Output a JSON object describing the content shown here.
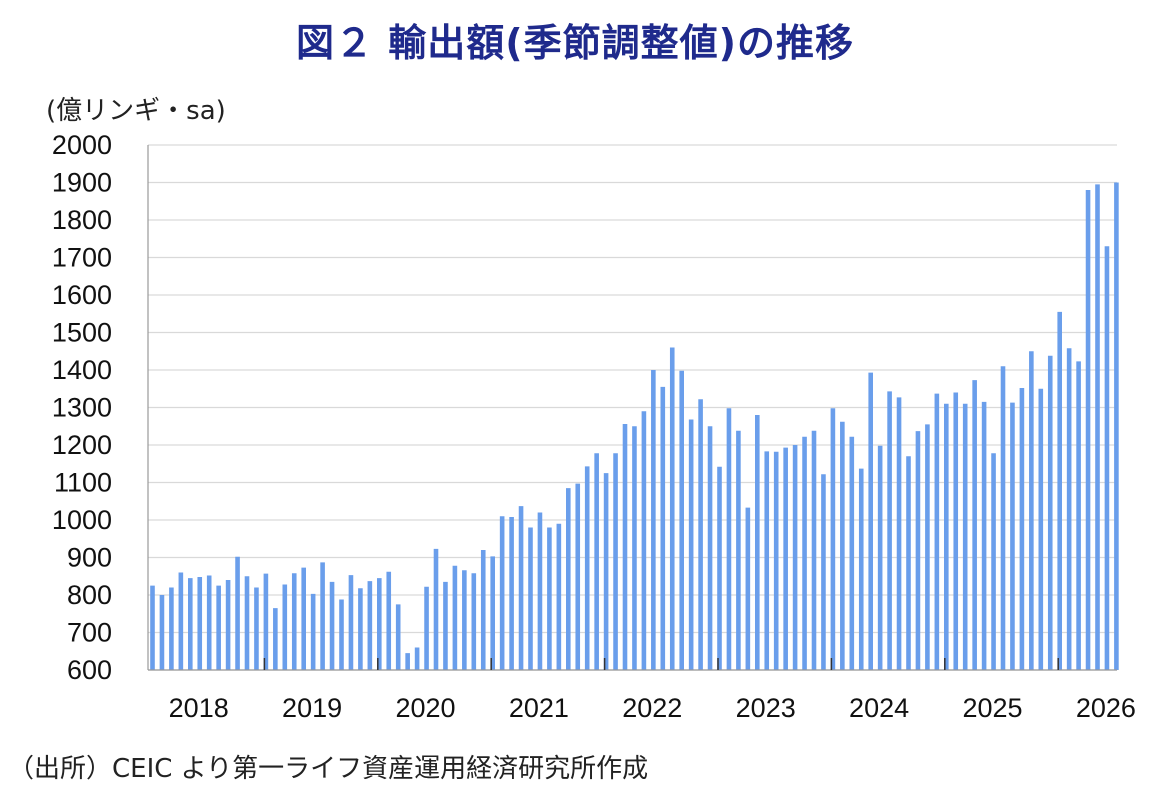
{
  "title": "図２ 輸出額(季節調整値)の推移",
  "unit_label": "(億リンギ・sa)",
  "source": "（出所）CEIC より第一ライフ資産運用経済研究所作成",
  "colors": {
    "bar": "#6a9eeb",
    "title": "#1f2a8c",
    "grid": "#d9d9d9",
    "axis": "#999999"
  },
  "chart_data": {
    "type": "bar",
    "title": "図２ 輸出額(季節調整値)の推移",
    "xlabel": "",
    "ylabel": "(億リンギ・sa)",
    "ylim": [
      600,
      2000
    ],
    "yticks": [
      600,
      700,
      800,
      900,
      1000,
      1100,
      1200,
      1300,
      1400,
      1500,
      1600,
      1700,
      1800,
      1900,
      2000
    ],
    "xtick_labels": [
      "2018",
      "2019",
      "2020",
      "2021",
      "2022",
      "2023",
      "2024",
      "2025",
      "2026"
    ],
    "grid": true,
    "start": "2018-01",
    "frequency": "monthly",
    "values": [
      825,
      800,
      820,
      860,
      845,
      848,
      852,
      825,
      840,
      902,
      850,
      820,
      857,
      765,
      828,
      858,
      873,
      803,
      887,
      835,
      788,
      853,
      818,
      837,
      845,
      862,
      775,
      645,
      660,
      822,
      923,
      835,
      878,
      866,
      858,
      920,
      903,
      1010,
      1008,
      1037,
      980,
      1020,
      980,
      990,
      1085,
      1097,
      1143,
      1178,
      1125,
      1178,
      1256,
      1250,
      1290,
      1400,
      1355,
      1460,
      1398,
      1268,
      1322,
      1250,
      1142,
      1298,
      1238,
      1033,
      1280,
      1183,
      1182,
      1193,
      1200,
      1222,
      1238,
      1122,
      1298,
      1262,
      1222,
      1137,
      1393,
      1198,
      1343,
      1327,
      1170,
      1237,
      1255,
      1337,
      1310,
      1340,
      1310,
      1373,
      1315,
      1178,
      1410,
      1313,
      1352,
      1450,
      1350,
      1438,
      1555,
      1458,
      1423,
      1880,
      1895,
      1730,
      1900
    ]
  }
}
